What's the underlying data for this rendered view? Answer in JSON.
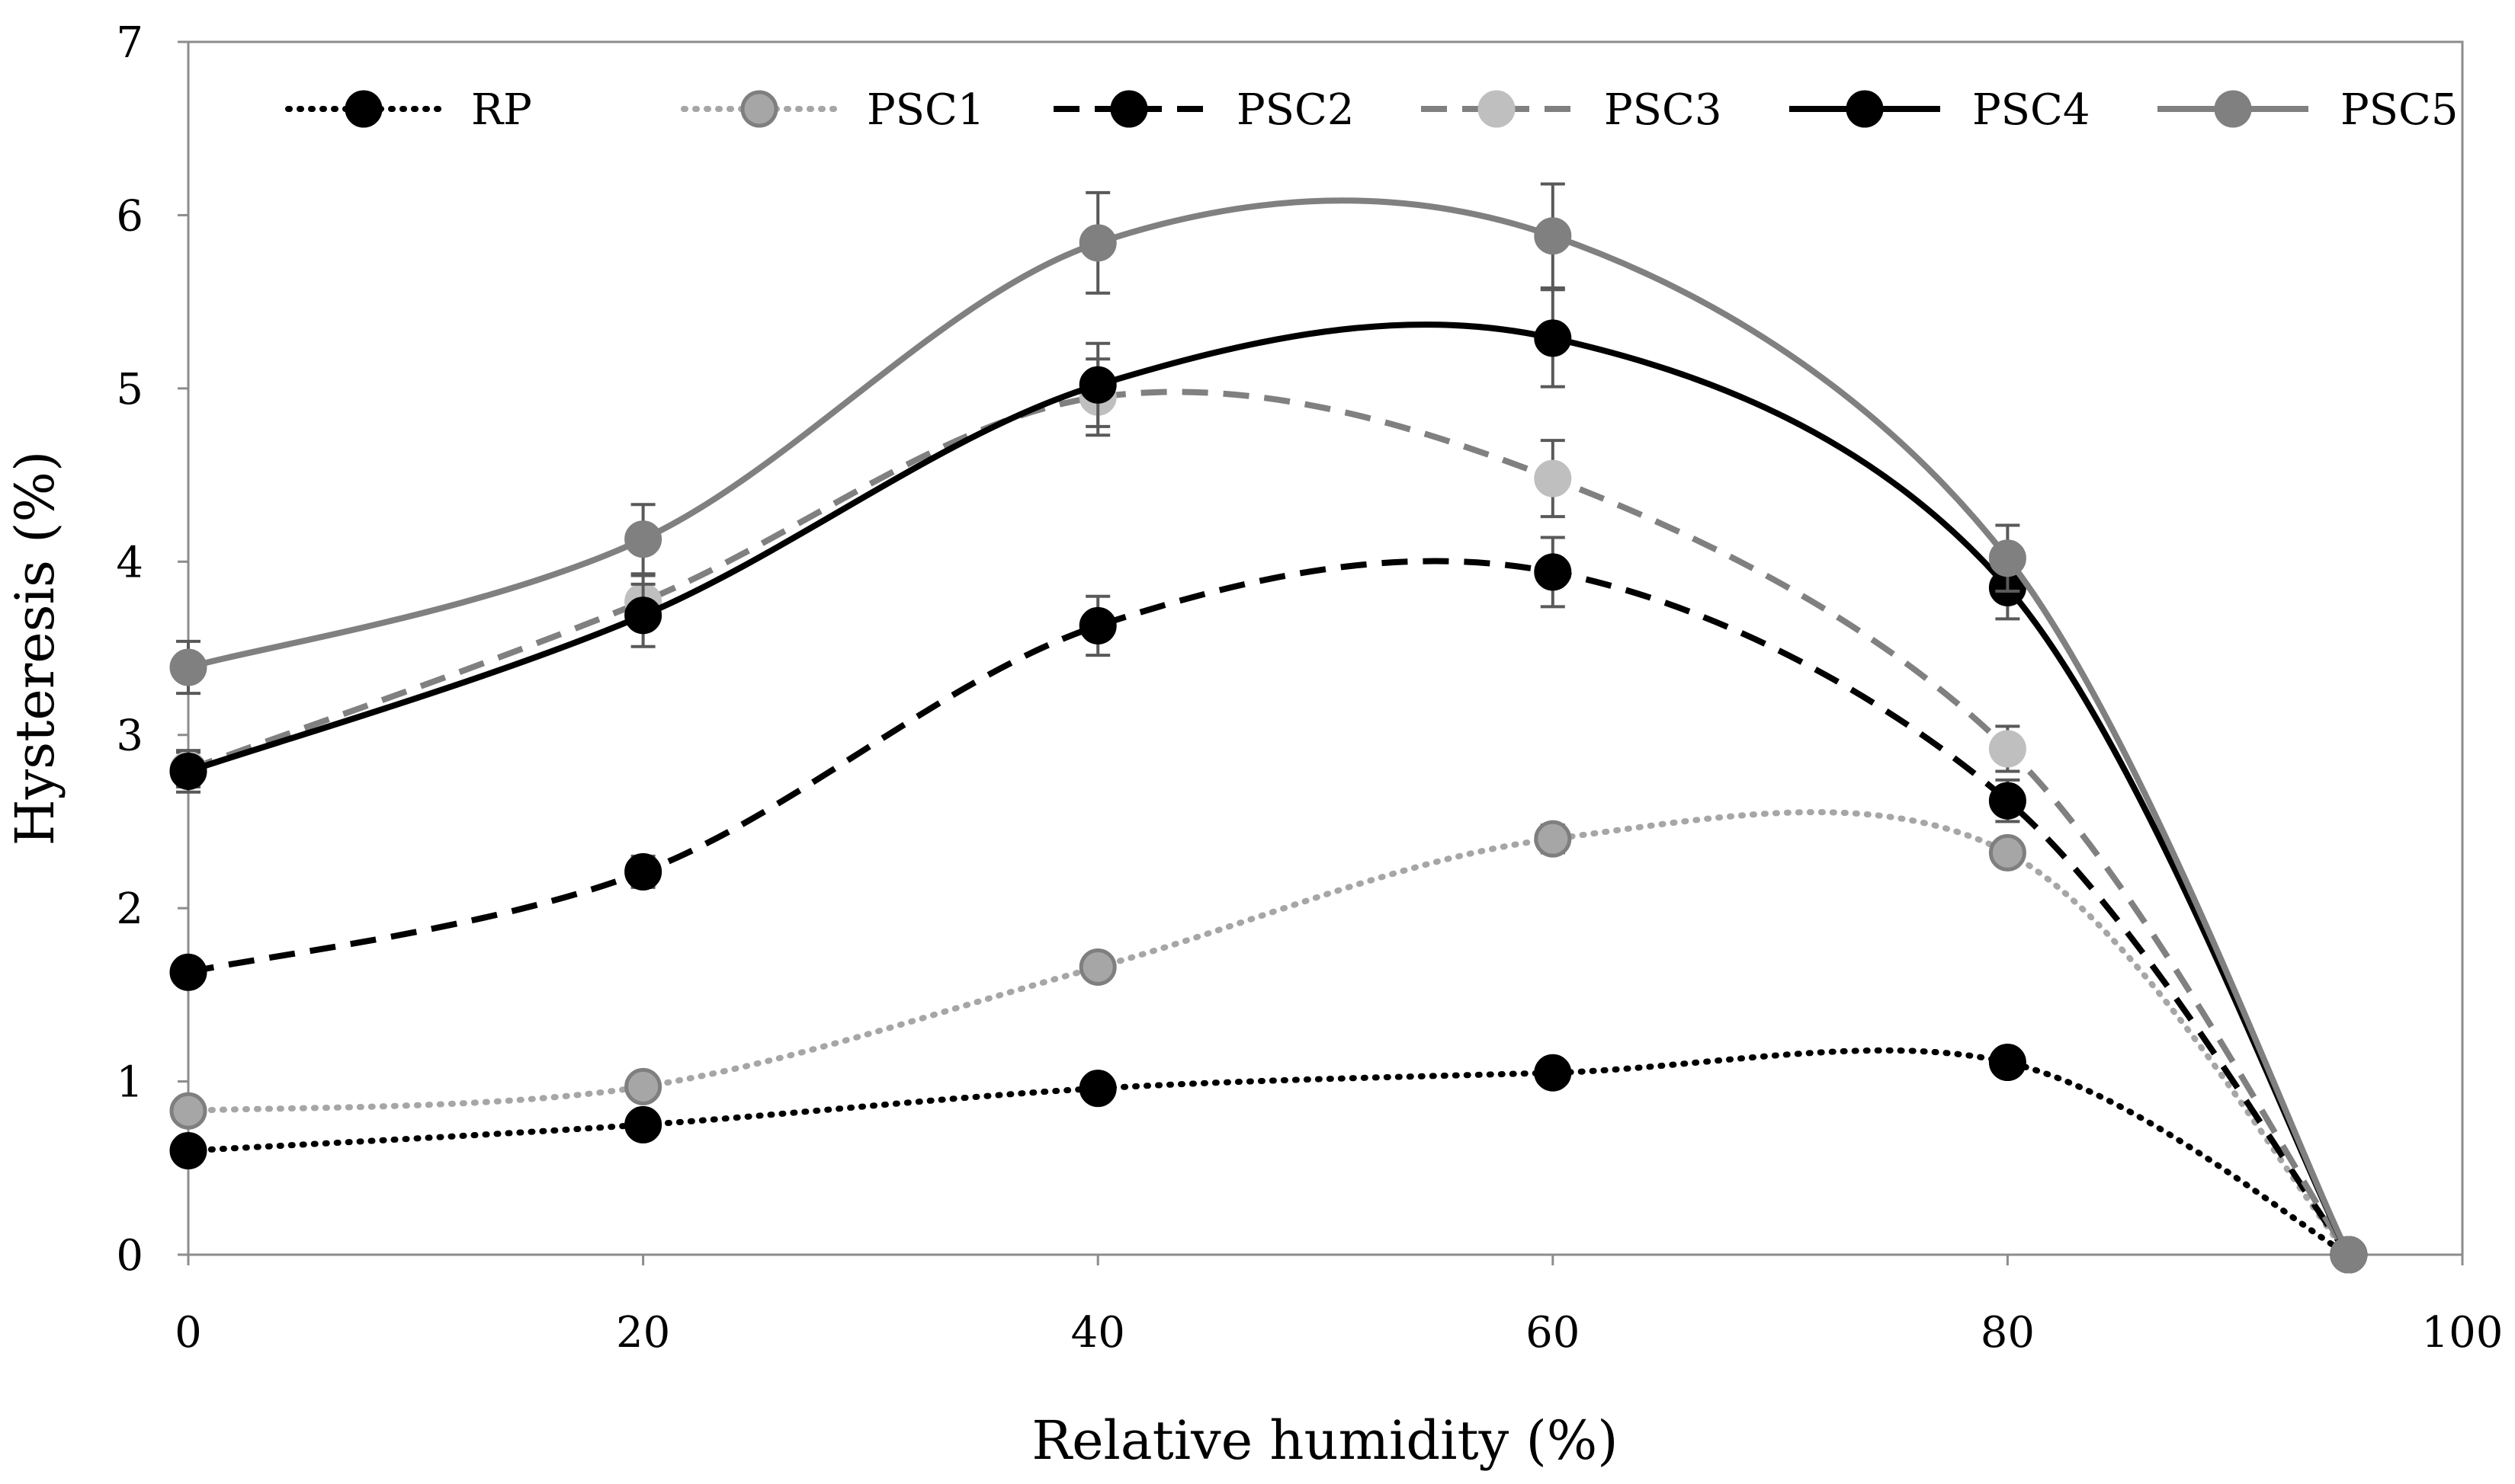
{
  "chart_data": {
    "type": "line",
    "xlabel": "Relative humidity (%)",
    "ylabel": "Hysteresis (%)",
    "xlim": [
      0,
      100
    ],
    "ylim": [
      0,
      7
    ],
    "x_ticks": [
      "0",
      "20",
      "40",
      "60",
      "80",
      "100"
    ],
    "y_ticks": [
      "0",
      "1",
      "2",
      "3",
      "4",
      "5",
      "6",
      "7"
    ],
    "grid": false,
    "legend_position": "top",
    "x": [
      0,
      20,
      40,
      60,
      80,
      95
    ],
    "series": [
      {
        "name": "RP",
        "values": [
          0.6,
          0.75,
          0.96,
          1.05,
          1.11,
          0
        ],
        "errors": [
          0.03,
          0.03,
          0.04,
          0.04,
          0.05,
          0
        ],
        "line_color": "#000000",
        "marker_fill": "#000000",
        "marker_stroke": "#000000",
        "line_style": "dotted"
      },
      {
        "name": "PSC1",
        "values": [
          0.83,
          0.97,
          1.66,
          2.4,
          2.32,
          0
        ],
        "errors": [
          0.04,
          0.05,
          0.06,
          0.08,
          0.07,
          0
        ],
        "line_color": "#a6a6a6",
        "marker_fill": "#a6a6a6",
        "marker_stroke": "#7f7f7f",
        "line_style": "dotted"
      },
      {
        "name": "PSC2",
        "values": [
          1.63,
          2.21,
          3.63,
          3.94,
          2.62,
          0
        ],
        "errors": [
          0.06,
          0.09,
          0.17,
          0.2,
          0.12,
          0
        ],
        "line_color": "#000000",
        "marker_fill": "#000000",
        "marker_stroke": "#000000",
        "line_style": "dashed"
      },
      {
        "name": "PSC3",
        "values": [
          2.8,
          3.77,
          4.95,
          4.48,
          2.92,
          0
        ],
        "errors": [
          0.1,
          0.15,
          0.22,
          0.22,
          0.13,
          0
        ],
        "line_color": "#808080",
        "marker_fill": "#bfbfbf",
        "marker_stroke": "#bfbfbf",
        "line_style": "dashed"
      },
      {
        "name": "PSC4",
        "values": [
          2.79,
          3.69,
          5.02,
          5.29,
          3.85,
          0
        ],
        "errors": [
          0.12,
          0.18,
          0.24,
          0.28,
          0.18,
          0
        ],
        "line_color": "#000000",
        "marker_fill": "#000000",
        "marker_stroke": "#000000",
        "line_style": "solid"
      },
      {
        "name": "PSC5",
        "values": [
          3.39,
          4.13,
          5.84,
          5.88,
          4.02,
          0
        ],
        "errors": [
          0.15,
          0.2,
          0.29,
          0.3,
          0.19,
          0
        ],
        "line_color": "#808080",
        "marker_fill": "#808080",
        "marker_stroke": "#808080",
        "line_style": "solid"
      }
    ]
  }
}
